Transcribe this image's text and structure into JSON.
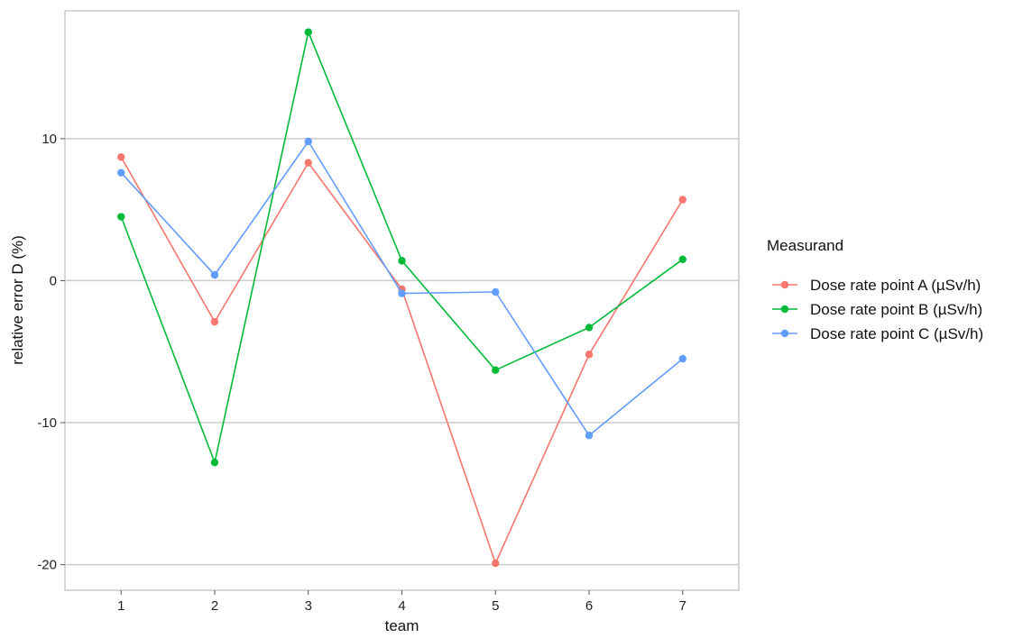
{
  "chart_data": {
    "type": "line",
    "title": "",
    "xlabel": "team",
    "ylabel": "relative error D (%)",
    "x": [
      1,
      2,
      3,
      4,
      5,
      6,
      7
    ],
    "x_ticks": [
      "1",
      "2",
      "3",
      "4",
      "5",
      "6",
      "7"
    ],
    "y_ticks": [
      -20,
      -10,
      0,
      10
    ],
    "ylim": [
      -21.8,
      19
    ],
    "xlim": [
      0.4,
      7.6
    ],
    "grid": "horizontal major lines",
    "legend": {
      "title": "Measurand",
      "placement": "right"
    },
    "series": [
      {
        "name": "Dose rate point A (µSv/h)",
        "color": "#F8766D",
        "values": [
          8.7,
          -2.9,
          8.3,
          -0.6,
          -19.9,
          -5.2,
          5.7
        ]
      },
      {
        "name": "Dose rate point B (µSv/h)",
        "color": "#00BA38",
        "values": [
          4.5,
          -12.8,
          17.5,
          1.4,
          -6.3,
          -3.3,
          1.5
        ]
      },
      {
        "name": "Dose rate point C (µSv/h)",
        "color": "#619CFF",
        "values": [
          7.6,
          0.4,
          9.8,
          -0.9,
          -0.8,
          -10.9,
          -5.5
        ]
      }
    ]
  }
}
